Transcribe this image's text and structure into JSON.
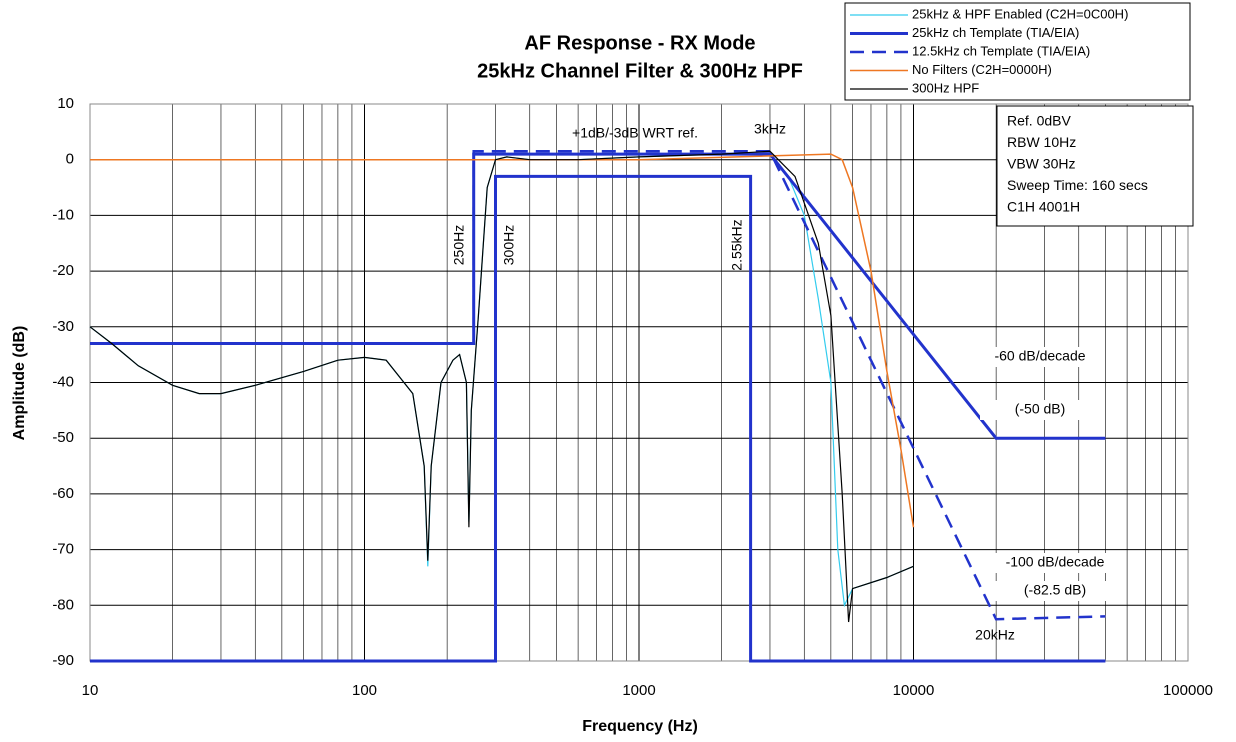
{
  "chart_data": {
    "type": "line",
    "title": "AF Response - RX Mode",
    "subtitle": "25kHz Channel Filter & 300Hz HPF",
    "x_label": "Frequency (Hz)",
    "y_label": "Amplitude (dB)",
    "xscale": "log",
    "xlim": [
      10,
      100000
    ],
    "ylim": [
      -90,
      10
    ],
    "xticks": [
      10,
      100,
      1000,
      10000,
      100000
    ],
    "xminorticks": [
      20,
      30,
      40,
      50,
      60,
      70,
      80,
      90,
      200,
      300,
      400,
      500,
      600,
      700,
      800,
      900,
      2000,
      3000,
      4000,
      5000,
      6000,
      7000,
      8000,
      9000,
      20000,
      30000,
      40000,
      50000,
      60000,
      70000,
      80000,
      90000
    ],
    "yticks": [
      10,
      0,
      -10,
      -20,
      -30,
      -40,
      -50,
      -60,
      -70,
      -80,
      -90
    ],
    "grid": true,
    "legend": "top-right",
    "series": [
      {
        "name": "25kHz & HPF Enabled (C2H=0C00H)",
        "color": "#33ccee",
        "width": 1.2,
        "dash": false,
        "x": [
          10,
          12,
          15,
          20,
          25,
          30,
          40,
          60,
          80,
          100,
          120,
          150,
          165,
          170,
          175,
          190,
          210,
          222,
          235,
          240,
          245,
          260,
          280,
          300,
          330,
          400,
          600,
          1000,
          2000,
          3000,
          3500,
          4000,
          4500,
          5000,
          5300,
          5600,
          6000,
          8000,
          10000
        ],
        "values": [
          -30,
          -33,
          -37,
          -40.5,
          -42,
          -42,
          -40.5,
          -38,
          -36,
          -35.5,
          -36,
          -42,
          -55,
          -73,
          -55,
          -40,
          -36,
          -35,
          -40,
          -65,
          -45,
          -28,
          -5,
          0,
          0.5,
          0,
          0,
          0.5,
          1,
          1,
          -3,
          -10,
          -25,
          -40,
          -70,
          -80,
          -77,
          -75,
          -73
        ]
      },
      {
        "name": "25kHz ch Template (TIA/EIA)",
        "color": "#2233cc",
        "width": 3,
        "dash": false,
        "x": [
          10,
          250,
          250,
          3000,
          20000,
          50000,
          null,
          10,
          300,
          300,
          2550,
          2550,
          50000
        ],
        "values": [
          -33,
          -33,
          1,
          1,
          -50,
          -50,
          null,
          -90,
          -90,
          -3,
          -3,
          -90,
          -90
        ]
      },
      {
        "name": "12.5kHz ch Template (TIA/EIA)",
        "color": "#2233cc",
        "width": 2.5,
        "dash": true,
        "x": [
          10,
          250,
          250,
          3000,
          20000,
          50000
        ],
        "values": [
          -33,
          -33,
          1.5,
          1.5,
          -82.5,
          -82
        ]
      },
      {
        "name": "No Filters (C2H=0000H)",
        "color": "#ee7722",
        "width": 1.5,
        "dash": false,
        "x": [
          10,
          1000,
          5000,
          5500,
          6000,
          7000,
          8000,
          9000,
          10000
        ],
        "values": [
          0,
          0,
          1,
          0,
          -5,
          -20,
          -38,
          -52,
          -66
        ]
      },
      {
        "name": "300Hz HPF",
        "color": "#000000",
        "width": 1.2,
        "dash": false,
        "x": [
          10,
          12,
          15,
          20,
          25,
          30,
          40,
          60,
          80,
          100,
          120,
          150,
          165,
          170,
          175,
          190,
          210,
          222,
          235,
          240,
          245,
          260,
          280,
          300,
          330,
          400,
          600,
          1000,
          2000,
          3000,
          3700,
          4500,
          5000,
          5500,
          5800,
          6000,
          8000,
          10000
        ],
        "values": [
          -30,
          -33,
          -37,
          -40.5,
          -42,
          -42,
          -40.5,
          -38,
          -36,
          -35.5,
          -36,
          -42,
          -55,
          -72,
          -55,
          -40,
          -36,
          -35,
          -40,
          -66,
          -45,
          -28,
          -5,
          0,
          0.5,
          0,
          0,
          0.5,
          1,
          1.5,
          -3,
          -15,
          -28,
          -60,
          -83,
          -77,
          -75,
          -73
        ]
      }
    ],
    "annotations": [
      "+1dB/-3dB WRT ref.",
      "3kHz",
      "250Hz",
      "300Hz",
      "2.55kHz",
      "-60 dB/decade",
      "(-50 dB)",
      "-100 dB/decade",
      "(-82.5 dB)",
      "20kHz"
    ],
    "info_box": [
      "Ref. 0dBV",
      "RBW 10Hz",
      "VBW 30Hz",
      "Sweep Time: 160 secs",
      "C1H 4001H"
    ]
  }
}
